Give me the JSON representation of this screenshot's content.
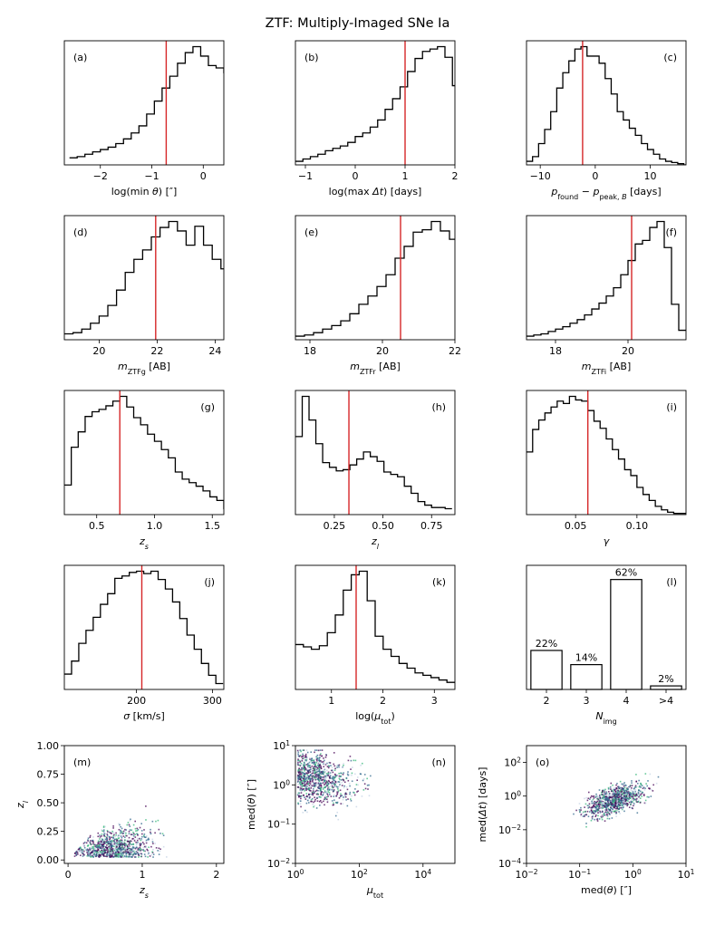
{
  "title": "ZTF: Multiply-Imaged SNe Ia",
  "chart_data": [
    {
      "id": "a",
      "panel_label": "(a)",
      "type": "step",
      "xlabel": {
        "pre": "log(min ",
        "g": "θ",
        "post": ") [″]"
      },
      "xlim": [
        -2.7,
        0.4
      ],
      "ylim": [
        0,
        1.05
      ],
      "x0": -2.6,
      "bw": 0.15,
      "values": [
        0.06,
        0.07,
        0.09,
        0.11,
        0.13,
        0.15,
        0.18,
        0.22,
        0.27,
        0.33,
        0.43,
        0.54,
        0.65,
        0.75,
        0.86,
        0.95,
        1.0,
        0.92,
        0.84,
        0.82,
        0.78,
        0.73,
        0.67,
        0.61,
        0.54,
        0.47,
        0.39,
        0.28
      ],
      "vline": -0.72,
      "xticks": [
        -2,
        -1,
        0
      ],
      "xticklabels": [
        "−2",
        "−1",
        "0"
      ],
      "label_pos": "left"
    },
    {
      "id": "b",
      "panel_label": "(b)",
      "type": "step",
      "xlabel": {
        "pre": "log(max ",
        "g": "Δt",
        "post": ") [days]"
      },
      "xlim": [
        -1.2,
        2.0
      ],
      "ylim": [
        0,
        1.05
      ],
      "x0": -1.2,
      "bw": 0.15,
      "values": [
        0.03,
        0.05,
        0.07,
        0.09,
        0.12,
        0.14,
        0.16,
        0.19,
        0.24,
        0.27,
        0.32,
        0.38,
        0.47,
        0.56,
        0.66,
        0.79,
        0.9,
        0.96,
        0.98,
        1.0,
        0.91,
        0.67,
        0.28
      ],
      "vline": 1.0,
      "xticks": [
        -1,
        0,
        1,
        2
      ],
      "xticklabels": [
        "−1",
        "0",
        "1",
        "2"
      ],
      "label_pos": "left"
    },
    {
      "id": "c",
      "panel_label": "(c)",
      "type": "step",
      "xlabel": {
        "pre": "",
        "g": "",
        "post": "",
        "math": "pfound"
      },
      "xlim": [
        -12.5,
        16.5
      ],
      "ylim": [
        0,
        1.05
      ],
      "x0": -12.5,
      "bw": 1.1,
      "values": [
        0.03,
        0.07,
        0.18,
        0.3,
        0.45,
        0.65,
        0.78,
        0.88,
        0.98,
        1.0,
        0.92,
        0.92,
        0.86,
        0.73,
        0.6,
        0.45,
        0.38,
        0.31,
        0.25,
        0.18,
        0.13,
        0.09,
        0.05,
        0.03,
        0.02,
        0.01,
        0.0
      ],
      "vline": -2.3,
      "xticks": [
        -10,
        0,
        10
      ],
      "xticklabels": [
        "−10",
        "0",
        "10"
      ],
      "label_pos": "right"
    },
    {
      "id": "d",
      "panel_label": "(d)",
      "type": "step",
      "xlabel": {
        "math": "mg"
      },
      "xlim": [
        18.8,
        24.3
      ],
      "ylim": [
        0,
        1.05
      ],
      "x0": 18.8,
      "bw": 0.3,
      "values": [
        0.05,
        0.06,
        0.09,
        0.14,
        0.2,
        0.29,
        0.42,
        0.57,
        0.68,
        0.76,
        0.87,
        0.95,
        1.0,
        0.92,
        0.8,
        0.96,
        0.8,
        0.68,
        0.6,
        0.57,
        0.52,
        0.27
      ],
      "vline": 21.95,
      "xticks": [
        20,
        22,
        24
      ],
      "xticklabels": [
        "20",
        "22",
        "24"
      ],
      "label_pos": "left"
    },
    {
      "id": "e",
      "panel_label": "(e)",
      "type": "step",
      "xlabel": {
        "math": "mr"
      },
      "xlim": [
        17.6,
        22.0
      ],
      "ylim": [
        0,
        1.05
      ],
      "x0": 17.6,
      "bw": 0.25,
      "values": [
        0.03,
        0.04,
        0.06,
        0.09,
        0.12,
        0.16,
        0.22,
        0.3,
        0.37,
        0.45,
        0.55,
        0.69,
        0.79,
        0.91,
        0.93,
        1.0,
        0.92,
        0.85,
        0.69,
        0.37
      ],
      "vline": 20.5,
      "xticks": [
        18,
        20,
        22
      ],
      "xticklabels": [
        "18",
        "20",
        "22"
      ],
      "label_pos": "left"
    },
    {
      "id": "f",
      "panel_label": "(f)",
      "type": "step",
      "xlabel": {
        "math": "mi"
      },
      "xlim": [
        17.2,
        21.6
      ],
      "ylim": [
        0,
        1.05
      ],
      "x0": 17.2,
      "bw": 0.2,
      "values": [
        0.03,
        0.04,
        0.05,
        0.07,
        0.09,
        0.11,
        0.14,
        0.17,
        0.21,
        0.26,
        0.31,
        0.37,
        0.44,
        0.55,
        0.67,
        0.81,
        0.84,
        0.95,
        1.0,
        0.78,
        0.3,
        0.08
      ],
      "vline": 20.1,
      "xticks": [
        18,
        20
      ],
      "xticklabels": [
        "18",
        "20"
      ],
      "label_pos": "right"
    },
    {
      "id": "g",
      "panel_label": "(g)",
      "type": "step",
      "xlabel": {
        "math": "zs"
      },
      "xlim": [
        0.22,
        1.6
      ],
      "ylim": [
        0,
        1.05
      ],
      "x0": 0.22,
      "bw": 0.06,
      "values": [
        0.25,
        0.57,
        0.7,
        0.83,
        0.87,
        0.89,
        0.92,
        0.96,
        1.0,
        0.91,
        0.82,
        0.76,
        0.68,
        0.62,
        0.55,
        0.48,
        0.36,
        0.3,
        0.27,
        0.24,
        0.2,
        0.15,
        0.12,
        0.05
      ],
      "vline": 0.7,
      "xticks": [
        0.5,
        1.0,
        1.5
      ],
      "xticklabels": [
        "0.5",
        "1.0",
        "1.5"
      ],
      "label_pos": "right"
    },
    {
      "id": "h",
      "panel_label": "(h)",
      "type": "step",
      "xlabel": {
        "math": "zl"
      },
      "xlim": [
        0.05,
        0.87
      ],
      "ylim": [
        0,
        1.05
      ],
      "x0": 0.05,
      "bw": 0.035,
      "values": [
        0.66,
        1.0,
        0.8,
        0.6,
        0.44,
        0.4,
        0.37,
        0.38,
        0.42,
        0.47,
        0.53,
        0.49,
        0.45,
        0.36,
        0.34,
        0.32,
        0.24,
        0.18,
        0.11,
        0.08,
        0.06,
        0.06,
        0.05
      ],
      "vline": 0.325,
      "xticks": [
        0.25,
        0.5,
        0.75
      ],
      "xticklabels": [
        "0.25",
        "0.50",
        "0.75"
      ],
      "label_pos": "right"
    },
    {
      "id": "i",
      "panel_label": "(i)",
      "type": "step",
      "xlabel": {
        "math": "gamma"
      },
      "xlim": [
        0.01,
        0.14
      ],
      "ylim": [
        0,
        1.05
      ],
      "x0": 0.01,
      "bw": 0.005,
      "values": [
        0.53,
        0.72,
        0.8,
        0.86,
        0.91,
        0.96,
        0.94,
        1.0,
        0.97,
        0.96,
        0.88,
        0.79,
        0.73,
        0.64,
        0.55,
        0.47,
        0.38,
        0.33,
        0.23,
        0.17,
        0.12,
        0.07,
        0.04,
        0.02,
        0.01,
        0.01
      ],
      "vline": 0.06,
      "xticks": [
        0.05,
        0.1
      ],
      "xticklabels": [
        "0.05",
        "0.10"
      ],
      "label_pos": "right"
    },
    {
      "id": "j",
      "panel_label": "(j)",
      "type": "step",
      "xlabel": {
        "pre": "",
        "g": "σ",
        "post": " [km/s]"
      },
      "xlim": [
        105,
        315
      ],
      "ylim": [
        0,
        1.05
      ],
      "x0": 105,
      "bw": 9.5,
      "values": [
        0.13,
        0.24,
        0.39,
        0.5,
        0.61,
        0.72,
        0.81,
        0.94,
        0.96,
        0.99,
        1.0,
        0.98,
        1.0,
        0.93,
        0.85,
        0.74,
        0.6,
        0.46,
        0.34,
        0.22,
        0.12,
        0.05
      ],
      "vline": 207,
      "xticks": [
        200,
        300
      ],
      "xticklabels": [
        "200",
        "300"
      ],
      "label_pos": "right"
    },
    {
      "id": "k",
      "panel_label": "(k)",
      "type": "step",
      "xlabel": {
        "math": "mutot"
      },
      "xlim": [
        0.3,
        3.4
      ],
      "ylim": [
        0,
        1.05
      ],
      "x0": 0.3,
      "bw": 0.155,
      "values": [
        0.38,
        0.36,
        0.34,
        0.37,
        0.48,
        0.63,
        0.84,
        0.97,
        1.0,
        0.75,
        0.45,
        0.34,
        0.28,
        0.22,
        0.18,
        0.14,
        0.12,
        0.1,
        0.08,
        0.06
      ],
      "vline": 1.48,
      "xticks": [
        1,
        2,
        3
      ],
      "xticklabels": [
        "1",
        "2",
        "3"
      ],
      "label_pos": "right"
    },
    {
      "id": "l",
      "panel_label": "(l)",
      "type": "bar",
      "xlabel": {
        "math": "Nimg"
      },
      "categories": [
        "2",
        "3",
        "4",
        ">4"
      ],
      "values": [
        22,
        14,
        62,
        2
      ],
      "data_labels": [
        "22%",
        "14%",
        "62%",
        "2%"
      ],
      "ylim": [
        0,
        70
      ],
      "label_pos": "right"
    },
    {
      "id": "m",
      "panel_label": "(m)",
      "type": "scatter",
      "xlabel": {
        "math": "zs"
      },
      "ylabel": {
        "math": "zl"
      },
      "xscale": "linear",
      "yscale": "linear",
      "xlim": [
        -0.05,
        2.1
      ],
      "ylim": [
        -0.03,
        1.0
      ],
      "xticks": [
        0,
        1,
        2
      ],
      "xticklabels": [
        "0",
        "1",
        "2"
      ],
      "yticks": [
        0,
        0.25,
        0.5,
        0.75,
        1.0
      ],
      "yticklabels": [
        "0.00",
        "0.25",
        "0.50",
        "0.75",
        "1.00"
      ],
      "label_pos": "left"
    },
    {
      "id": "n",
      "panel_label": "(n)",
      "type": "scatter",
      "xlabel": {
        "math": "mutot"
      },
      "ylabel": {
        "math": "medtheta"
      },
      "xscale": "log",
      "yscale": "log",
      "xlim": [
        1,
        100000
      ],
      "ylim": [
        0.01,
        10
      ],
      "xticks": [
        1,
        100,
        10000
      ],
      "xticklabels": [
        [
          "10",
          "0"
        ],
        [
          "10",
          "2"
        ],
        [
          "10",
          "4"
        ]
      ],
      "yticks": [
        0.01,
        0.1,
        1,
        10
      ],
      "yticklabels": [
        [
          "10",
          "−2"
        ],
        [
          "10",
          "−1"
        ],
        [
          "10",
          "0"
        ],
        [
          "10",
          "1"
        ]
      ],
      "label_pos": "right"
    },
    {
      "id": "o",
      "panel_label": "(o)",
      "type": "scatter",
      "xlabel": {
        "math": "medtheta_x"
      },
      "ylabel": {
        "math": "meddt"
      },
      "xscale": "log",
      "yscale": "log",
      "xlim": [
        0.01,
        10
      ],
      "ylim": [
        0.0001,
        1000
      ],
      "xticks": [
        0.01,
        0.1,
        1,
        10
      ],
      "xticklabels": [
        [
          "10",
          "−2"
        ],
        [
          "10",
          "−1"
        ],
        [
          "10",
          "0"
        ],
        [
          "10",
          "1"
        ]
      ],
      "yticks": [
        0.0001,
        0.01,
        1,
        100
      ],
      "yticklabels": [
        [
          "10",
          "−4"
        ],
        [
          "10",
          "−2"
        ],
        [
          "10",
          "0"
        ],
        [
          "10",
          "2"
        ]
      ],
      "label_pos": "left"
    }
  ],
  "colors": {
    "hist": "#000000",
    "vline": "#d62728",
    "point_dark": "#440154",
    "point_mid": "#31688e",
    "point_light": "#35b779",
    "point_pale": "#c7d4e6"
  }
}
